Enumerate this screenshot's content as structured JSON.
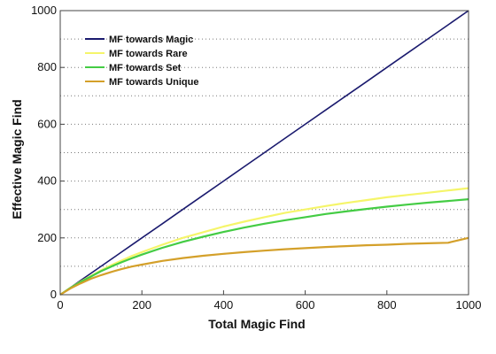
{
  "chart_data": {
    "type": "line",
    "title": "",
    "xlabel": "Total Magic Find",
    "ylabel": "Effective Magic Find",
    "xlim": [
      0,
      1000
    ],
    "ylim": [
      0,
      1000
    ],
    "x_ticks": [
      "0",
      "200",
      "400",
      "600",
      "800",
      "1000"
    ],
    "y_ticks": [
      "0",
      "200",
      "400",
      "600",
      "800",
      "1000"
    ],
    "grid": "horizontal dotted, every 100",
    "legend_position": "top-left",
    "x": [
      0,
      25,
      50,
      75,
      100,
      125,
      150,
      175,
      200,
      250,
      300,
      350,
      400,
      450,
      500,
      550,
      600,
      650,
      700,
      750,
      800,
      850,
      900,
      950,
      1000
    ],
    "series": [
      {
        "name": "MF towards Magic",
        "color": "#1a1a6e",
        "values": [
          0,
          25,
          50,
          75,
          100,
          125,
          150,
          175,
          200,
          250,
          300,
          350,
          400,
          450,
          500,
          550,
          600,
          650,
          700,
          750,
          800,
          850,
          900,
          950,
          1000
        ]
      },
      {
        "name": "MF towards Rare",
        "color": "#f5f56a",
        "values": [
          0,
          24,
          46,
          66,
          86,
          104,
          120,
          136,
          150,
          176,
          200,
          220,
          240,
          257,
          273,
          288,
          300,
          312,
          323,
          333,
          343,
          351,
          359,
          367,
          375
        ]
      },
      {
        "name": "MF towards Set",
        "color": "#44cc44",
        "values": [
          0,
          24,
          45,
          64,
          83,
          99,
          114,
          128,
          141,
          165,
          186,
          204,
          221,
          236,
          250,
          262,
          273,
          284,
          293,
          302,
          310,
          317,
          324,
          330,
          336
        ]
      },
      {
        "name": "MF towards Unique",
        "color": "#d4a02a",
        "values": [
          0,
          22,
          40,
          56,
          69,
          80,
          90,
          99,
          106,
          119,
          129,
          137,
          144,
          150,
          155,
          160,
          164,
          168,
          171,
          174,
          176,
          179,
          181,
          183,
          200
        ]
      }
    ]
  }
}
